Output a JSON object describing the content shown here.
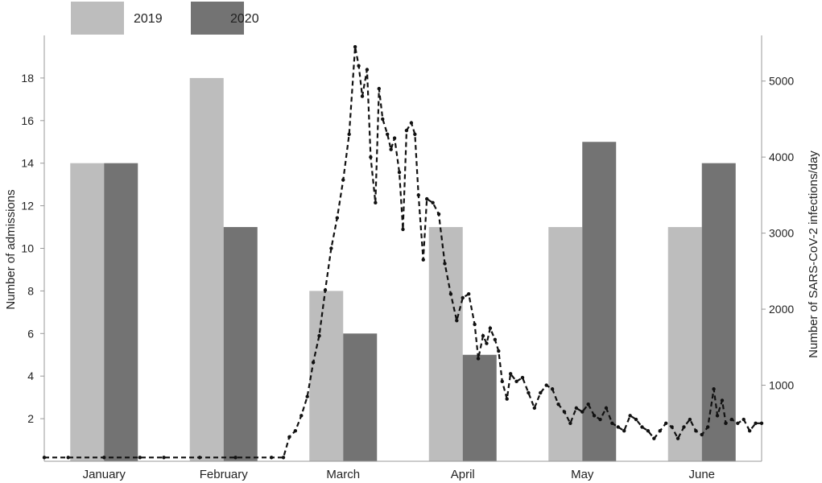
{
  "chart_data": {
    "type": "bar",
    "categories": [
      "January",
      "February",
      "March",
      "April",
      "May",
      "June"
    ],
    "series": [
      {
        "name": "2019",
        "values": [
          14,
          18,
          8,
          11,
          11,
          11
        ],
        "color": "#bdbdbd"
      },
      {
        "name": "2020",
        "values": [
          14,
          11,
          6,
          5,
          15,
          14
        ],
        "color": "#737373"
      }
    ],
    "ylabel": "Number of admissions",
    "ylim": [
      0,
      20
    ],
    "yticks": [
      2,
      4,
      6,
      8,
      10,
      12,
      14,
      16,
      18
    ],
    "secondary": {
      "type": "line",
      "style": "dashed-with-point-markers",
      "color": "#111111",
      "ylabel": "Number of SARS-CoV-2 infections/day",
      "ylim": [
        0,
        5600
      ],
      "yticks": [
        1000,
        2000,
        3000,
        4000,
        5000
      ],
      "x_range_months": [
        0.0,
        6.0
      ],
      "points": [
        [
          0.0,
          50
        ],
        [
          0.2,
          50
        ],
        [
          0.5,
          50
        ],
        [
          0.8,
          50
        ],
        [
          1.0,
          50
        ],
        [
          1.3,
          50
        ],
        [
          1.6,
          50
        ],
        [
          1.9,
          50
        ],
        [
          2.0,
          50
        ],
        [
          2.05,
          320
        ],
        [
          2.1,
          400
        ],
        [
          2.15,
          600
        ],
        [
          2.2,
          850
        ],
        [
          2.25,
          1300
        ],
        [
          2.3,
          1650
        ],
        [
          2.35,
          2250
        ],
        [
          2.4,
          2800
        ],
        [
          2.45,
          3200
        ],
        [
          2.5,
          3700
        ],
        [
          2.55,
          4300
        ],
        [
          2.6,
          5450
        ],
        [
          2.63,
          5200
        ],
        [
          2.66,
          4800
        ],
        [
          2.7,
          5150
        ],
        [
          2.73,
          4000
        ],
        [
          2.77,
          3400
        ],
        [
          2.8,
          4900
        ],
        [
          2.83,
          4500
        ],
        [
          2.87,
          4300
        ],
        [
          2.9,
          4100
        ],
        [
          2.93,
          4250
        ],
        [
          2.97,
          3800
        ],
        [
          3.0,
          3050
        ],
        [
          3.03,
          4350
        ],
        [
          3.07,
          4450
        ],
        [
          3.1,
          4300
        ],
        [
          3.13,
          3500
        ],
        [
          3.17,
          2650
        ],
        [
          3.2,
          3450
        ],
        [
          3.25,
          3400
        ],
        [
          3.3,
          3250
        ],
        [
          3.35,
          2600
        ],
        [
          3.4,
          2200
        ],
        [
          3.45,
          1850
        ],
        [
          3.5,
          2150
        ],
        [
          3.55,
          2200
        ],
        [
          3.6,
          1800
        ],
        [
          3.63,
          1350
        ],
        [
          3.67,
          1650
        ],
        [
          3.7,
          1550
        ],
        [
          3.73,
          1750
        ],
        [
          3.77,
          1600
        ],
        [
          3.8,
          1450
        ],
        [
          3.83,
          1050
        ],
        [
          3.87,
          820
        ],
        [
          3.9,
          1150
        ],
        [
          3.95,
          1050
        ],
        [
          4.0,
          1100
        ],
        [
          4.05,
          900
        ],
        [
          4.1,
          700
        ],
        [
          4.15,
          900
        ],
        [
          4.2,
          1000
        ],
        [
          4.25,
          950
        ],
        [
          4.3,
          750
        ],
        [
          4.35,
          650
        ],
        [
          4.4,
          500
        ],
        [
          4.45,
          700
        ],
        [
          4.5,
          650
        ],
        [
          4.55,
          750
        ],
        [
          4.6,
          600
        ],
        [
          4.65,
          550
        ],
        [
          4.7,
          700
        ],
        [
          4.75,
          500
        ],
        [
          4.8,
          450
        ],
        [
          4.85,
          400
        ],
        [
          4.9,
          600
        ],
        [
          4.95,
          550
        ],
        [
          5.0,
          450
        ],
        [
          5.05,
          400
        ],
        [
          5.1,
          300
        ],
        [
          5.15,
          400
        ],
        [
          5.2,
          500
        ],
        [
          5.25,
          450
        ],
        [
          5.3,
          300
        ],
        [
          5.35,
          450
        ],
        [
          5.4,
          550
        ],
        [
          5.45,
          400
        ],
        [
          5.5,
          350
        ],
        [
          5.55,
          450
        ],
        [
          5.6,
          950
        ],
        [
          5.63,
          600
        ],
        [
          5.67,
          800
        ],
        [
          5.7,
          500
        ],
        [
          5.75,
          550
        ],
        [
          5.8,
          500
        ],
        [
          5.85,
          550
        ],
        [
          5.9,
          400
        ],
        [
          5.95,
          500
        ],
        [
          6.0,
          500
        ]
      ]
    },
    "legend": {
      "position": "top-left"
    },
    "grid": false
  }
}
